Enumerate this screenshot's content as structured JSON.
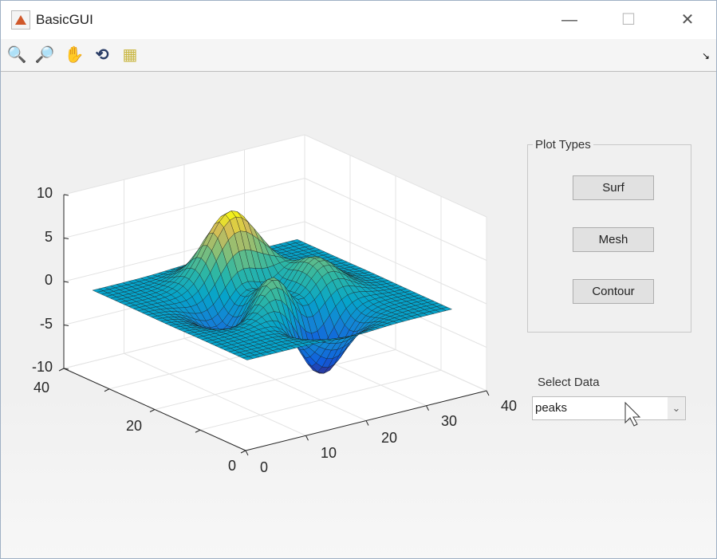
{
  "window": {
    "title": "BasicGUI",
    "controls": [
      "minimize",
      "maximize",
      "close"
    ]
  },
  "toolbar": {
    "tools": [
      "zoom-in-icon",
      "zoom-out-icon",
      "pan-hand-icon",
      "rotate-3d-icon",
      "data-cursor-icon"
    ],
    "dock_symbol": "↘"
  },
  "plot": {
    "type": "surf",
    "dataset": "peaks",
    "colormap": "parula",
    "z_ticks": [
      "10",
      "5",
      "0",
      "-5",
      "-10"
    ],
    "y_ticks": [
      "40",
      "20",
      "0"
    ],
    "x_ticks": [
      "0",
      "10",
      "20",
      "30",
      "40"
    ]
  },
  "panel": {
    "title": "Plot Types",
    "buttons": [
      {
        "label": "Surf"
      },
      {
        "label": "Mesh"
      },
      {
        "label": "Contour"
      }
    ]
  },
  "data_select": {
    "label": "Select Data",
    "value": "peaks"
  }
}
